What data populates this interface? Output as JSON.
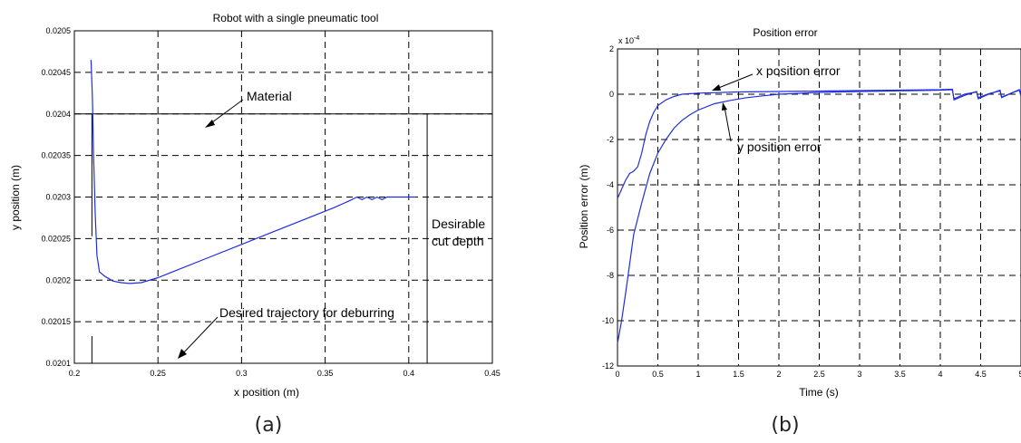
{
  "chart_data": [
    {
      "type": "line",
      "panel_label": "(a)",
      "title": "Robot with a single pneumatic tool",
      "xlabel": "x position (m)",
      "ylabel": "y position (m)",
      "xlim": [
        0.2,
        0.45
      ],
      "ylim": [
        0.0201,
        0.0205
      ],
      "xticks": [
        0.2,
        0.25,
        0.3,
        0.35,
        0.4,
        0.45
      ],
      "yticks": [
        0.0201,
        0.02015,
        0.0202,
        0.02025,
        0.0203,
        0.02035,
        0.0204,
        0.02045,
        0.0205
      ],
      "xtick_labels": [
        "0.2",
        "0.25",
        "0.3",
        "0.35",
        "0.4",
        "0.45"
      ],
      "ytick_labels": [
        "0.0201",
        "0.02015",
        "0.0202",
        "0.02025",
        "0.0203",
        "0.02035",
        "0.0204",
        "0.02045",
        "0.0205"
      ],
      "grid": true,
      "line_color": "#1f2ee0",
      "series": [
        {
          "points": [
            [
              0.21,
              0.020465
            ],
            [
              0.2108,
              0.02042
            ],
            [
              0.2115,
              0.02035
            ],
            [
              0.2125,
              0.02028
            ],
            [
              0.2135,
              0.02023
            ],
            [
              0.215,
              0.02021
            ],
            [
              0.218,
              0.020205
            ],
            [
              0.223,
              0.020199
            ],
            [
              0.228,
              0.020197
            ],
            [
              0.233,
              0.020196
            ],
            [
              0.24,
              0.020197
            ],
            [
              0.25,
              0.020203
            ],
            [
              0.26,
              0.020211
            ],
            [
              0.28,
              0.020227
            ],
            [
              0.3,
              0.020243
            ],
            [
              0.32,
              0.020259
            ],
            [
              0.34,
              0.020275
            ],
            [
              0.355,
              0.020287
            ],
            [
              0.365,
              0.020296
            ],
            [
              0.369,
              0.0203
            ],
            [
              0.372,
              0.020297
            ],
            [
              0.375,
              0.0203
            ],
            [
              0.378,
              0.020297
            ],
            [
              0.381,
              0.0203
            ],
            [
              0.384,
              0.020297
            ],
            [
              0.387,
              0.0203
            ],
            [
              0.39,
              0.0203
            ],
            [
              0.395,
              0.0203
            ],
            [
              0.404,
              0.0203
            ]
          ]
        }
      ],
      "annotations": {
        "material": "Material",
        "desirable_cut": "Desirable",
        "cut_depth": "cut depth",
        "desired_trajectory": "Desired trajectory for deburring"
      },
      "reference_lines": {
        "material_y": 0.0204,
        "left_marker_x": 0.2105,
        "right_marker_x": 0.411
      }
    },
    {
      "type": "line",
      "panel_label": "(b)",
      "title": "Position error",
      "xlabel": "Time (s)",
      "ylabel": "Position error (m)",
      "y_multiplier": "x 10",
      "y_multiplier_exp": "-4",
      "xlim": [
        0,
        5
      ],
      "ylim": [
        -12,
        2
      ],
      "xticks": [
        0,
        0.5,
        1,
        1.5,
        2,
        2.5,
        3,
        3.5,
        4,
        4.5,
        5
      ],
      "yticks": [
        -12,
        -10,
        -8,
        -6,
        -4,
        -2,
        0,
        2
      ],
      "xtick_labels": [
        "0",
        "0.5",
        "1",
        "1.5",
        "2",
        "2.5",
        "3",
        "3.5",
        "4",
        "4.5",
        "5"
      ],
      "ytick_labels": [
        "-12",
        "-10",
        "-8",
        "-6",
        "-4",
        "-2",
        "0",
        "2"
      ],
      "grid": true,
      "line_color": "#1f2ee0",
      "series": [
        {
          "points": [
            [
              0,
              -4.6
            ],
            [
              0.05,
              -4.2
            ],
            [
              0.1,
              -3.8
            ],
            [
              0.15,
              -3.5
            ],
            [
              0.2,
              -3.4
            ],
            [
              0.25,
              -3.2
            ],
            [
              0.3,
              -2.6
            ],
            [
              0.35,
              -1.8
            ],
            [
              0.4,
              -1.2
            ],
            [
              0.45,
              -0.8
            ],
            [
              0.5,
              -0.5
            ],
            [
              0.6,
              -0.25
            ],
            [
              0.7,
              -0.1
            ],
            [
              0.8,
              0.0
            ],
            [
              1.0,
              0.05
            ],
            [
              1.5,
              0.1
            ],
            [
              2.0,
              0.12
            ],
            [
              2.5,
              0.14
            ],
            [
              3.0,
              0.16
            ],
            [
              3.5,
              0.18
            ],
            [
              4.0,
              0.2
            ],
            [
              4.15,
              0.22
            ],
            [
              4.17,
              -0.25
            ],
            [
              4.3,
              -0.05
            ],
            [
              4.45,
              0.12
            ],
            [
              4.47,
              -0.2
            ],
            [
              4.6,
              0.0
            ],
            [
              4.74,
              0.18
            ],
            [
              4.76,
              -0.15
            ],
            [
              4.88,
              0.05
            ],
            [
              4.98,
              0.2
            ],
            [
              5.0,
              -0.1
            ]
          ]
        },
        {
          "points": [
            [
              0,
              -11.0
            ],
            [
              0.05,
              -10.0
            ],
            [
              0.1,
              -8.8
            ],
            [
              0.15,
              -7.5
            ],
            [
              0.2,
              -6.2
            ],
            [
              0.3,
              -4.8
            ],
            [
              0.4,
              -3.5
            ],
            [
              0.5,
              -2.6
            ],
            [
              0.6,
              -2.0
            ],
            [
              0.7,
              -1.5
            ],
            [
              0.8,
              -1.15
            ],
            [
              0.9,
              -0.9
            ],
            [
              1.0,
              -0.7
            ],
            [
              1.2,
              -0.42
            ],
            [
              1.4,
              -0.27
            ],
            [
              1.6,
              -0.15
            ],
            [
              1.8,
              -0.07
            ],
            [
              2.0,
              0.0
            ],
            [
              2.5,
              0.08
            ],
            [
              3.0,
              0.12
            ],
            [
              3.5,
              0.15
            ],
            [
              4.0,
              0.18
            ],
            [
              4.15,
              0.2
            ],
            [
              4.17,
              -0.2
            ],
            [
              4.3,
              0.0
            ],
            [
              4.45,
              0.1
            ],
            [
              4.47,
              -0.15
            ],
            [
              4.6,
              0.02
            ],
            [
              4.74,
              0.15
            ],
            [
              4.76,
              -0.12
            ],
            [
              4.88,
              0.05
            ],
            [
              4.98,
              0.18
            ],
            [
              5.0,
              -0.05
            ]
          ]
        }
      ],
      "annotations": {
        "x_error": "x position error",
        "y_error": "y position error"
      }
    }
  ]
}
